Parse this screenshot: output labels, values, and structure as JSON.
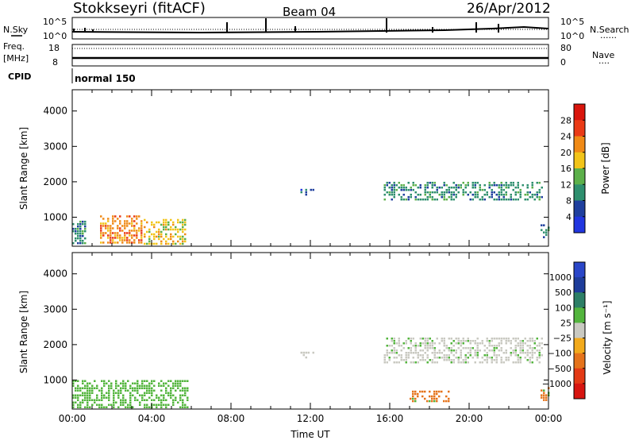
{
  "header": {
    "station": "Stokkseyri (fitACF)",
    "beam": "Beam 04",
    "date": "26/Apr/2012"
  },
  "top_panels": {
    "nsky_label": "N.Sky",
    "nsearch_label": "N.Search",
    "nsearch_dots": "......",
    "noise_left_top": "10^5",
    "noise_left_bottom": "10^0",
    "noise_right_top": "10^5",
    "noise_right_bottom": "10^0",
    "freq_label": "Freq.",
    "freq_unit": "[MHz]",
    "freq_top": "18",
    "freq_bottom": "8",
    "nave_label": "Nave",
    "nave_dots": "....",
    "nave_top": "80",
    "nave_bottom": "0",
    "cpid_label": "CPID",
    "cpid_value": "normal 150"
  },
  "power_cbar": {
    "title": "Power [dB]",
    "ticks": [
      "28",
      "24",
      "20",
      "16",
      "12",
      "8",
      "4"
    ],
    "colors": [
      "#2136e0",
      "#1f3f9e",
      "#2e8f6e",
      "#5cb04a",
      "#f2c419",
      "#f08a16",
      "#ea3a16",
      "#d9150c"
    ]
  },
  "velocity_cbar": {
    "title": "Velocity [m s⁻¹]",
    "ticks": [
      "1000",
      "500",
      "100",
      "25",
      "−25",
      "−100",
      "−500",
      "−1000"
    ],
    "colors": [
      "#2a46c8",
      "#1e3c9a",
      "#2d7f66",
      "#53b53d",
      "#c9c9c1",
      "#f2aa1c",
      "#e5731b",
      "#e33a15",
      "#d71510"
    ]
  },
  "chart_data": [
    {
      "type": "heatmap",
      "name": "power",
      "ylabel": "Slant Range [km]",
      "ylim": [
        180,
        4600
      ],
      "yticks": [
        1000,
        2000,
        3000,
        4000
      ],
      "xlim": [
        0,
        24
      ],
      "xticks": [
        0,
        4,
        8,
        12,
        16,
        20,
        24
      ],
      "colorbar_label": "Power [dB]",
      "regions": [
        {
          "t0": 0.0,
          "t1": 0.7,
          "r0": 250,
          "r1": 900,
          "value_db": 10
        },
        {
          "t0": 1.4,
          "t1": 3.5,
          "r0": 250,
          "r1": 1050,
          "value_db": 22
        },
        {
          "t0": 3.6,
          "t1": 5.7,
          "r0": 250,
          "r1": 950,
          "value_db": 20
        },
        {
          "t0": 11.5,
          "t1": 12.2,
          "r0": 1650,
          "r1": 1800,
          "value_db": 6
        },
        {
          "t0": 15.7,
          "t1": 23.7,
          "r0": 1500,
          "r1": 2000,
          "value_db": 10
        },
        {
          "t0": 23.6,
          "t1": 24.0,
          "r0": 450,
          "r1": 800,
          "value_db": 10
        }
      ]
    },
    {
      "type": "heatmap",
      "name": "velocity",
      "ylabel": "Slant Range [km]",
      "xlabel": "Time UT",
      "ylim": [
        180,
        4600
      ],
      "yticks": [
        1000,
        2000,
        3000,
        4000
      ],
      "xlim": [
        0,
        24
      ],
      "xticks": [
        0,
        4,
        8,
        12,
        16,
        20,
        24
      ],
      "xticklabels": [
        "00:00",
        "04:00",
        "08:00",
        "12:00",
        "16:00",
        "20:00",
        "00:00"
      ],
      "colorbar_label": "Velocity [m s⁻¹]",
      "regions": [
        {
          "t0": 0.0,
          "t1": 5.8,
          "r0": 250,
          "r1": 1000,
          "value_ms": 50
        },
        {
          "t0": 11.5,
          "t1": 12.2,
          "r0": 1650,
          "r1": 1800,
          "value_ms": 0
        },
        {
          "t0": 15.7,
          "t1": 23.7,
          "r0": 1500,
          "r1": 2200,
          "value_ms": 0
        },
        {
          "t0": 17.0,
          "t1": 19.0,
          "r0": 400,
          "r1": 700,
          "value_ms": -200
        },
        {
          "t0": 23.6,
          "t1": 24.0,
          "r0": 450,
          "r1": 800,
          "value_ms": -200
        }
      ]
    }
  ]
}
